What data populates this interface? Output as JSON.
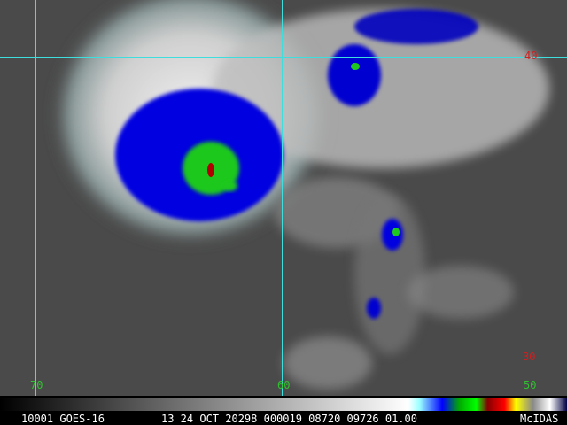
{
  "grid_labels": {
    "latitudes": [
      "40",
      "30"
    ],
    "longitudes": [
      "70",
      "60",
      "50"
    ]
  },
  "status_bar": {
    "satellite": "10001 GOES-16",
    "time": "13 24 OCT 20298 000019 08720 09726 01.00",
    "brand": "McIDAS"
  }
}
